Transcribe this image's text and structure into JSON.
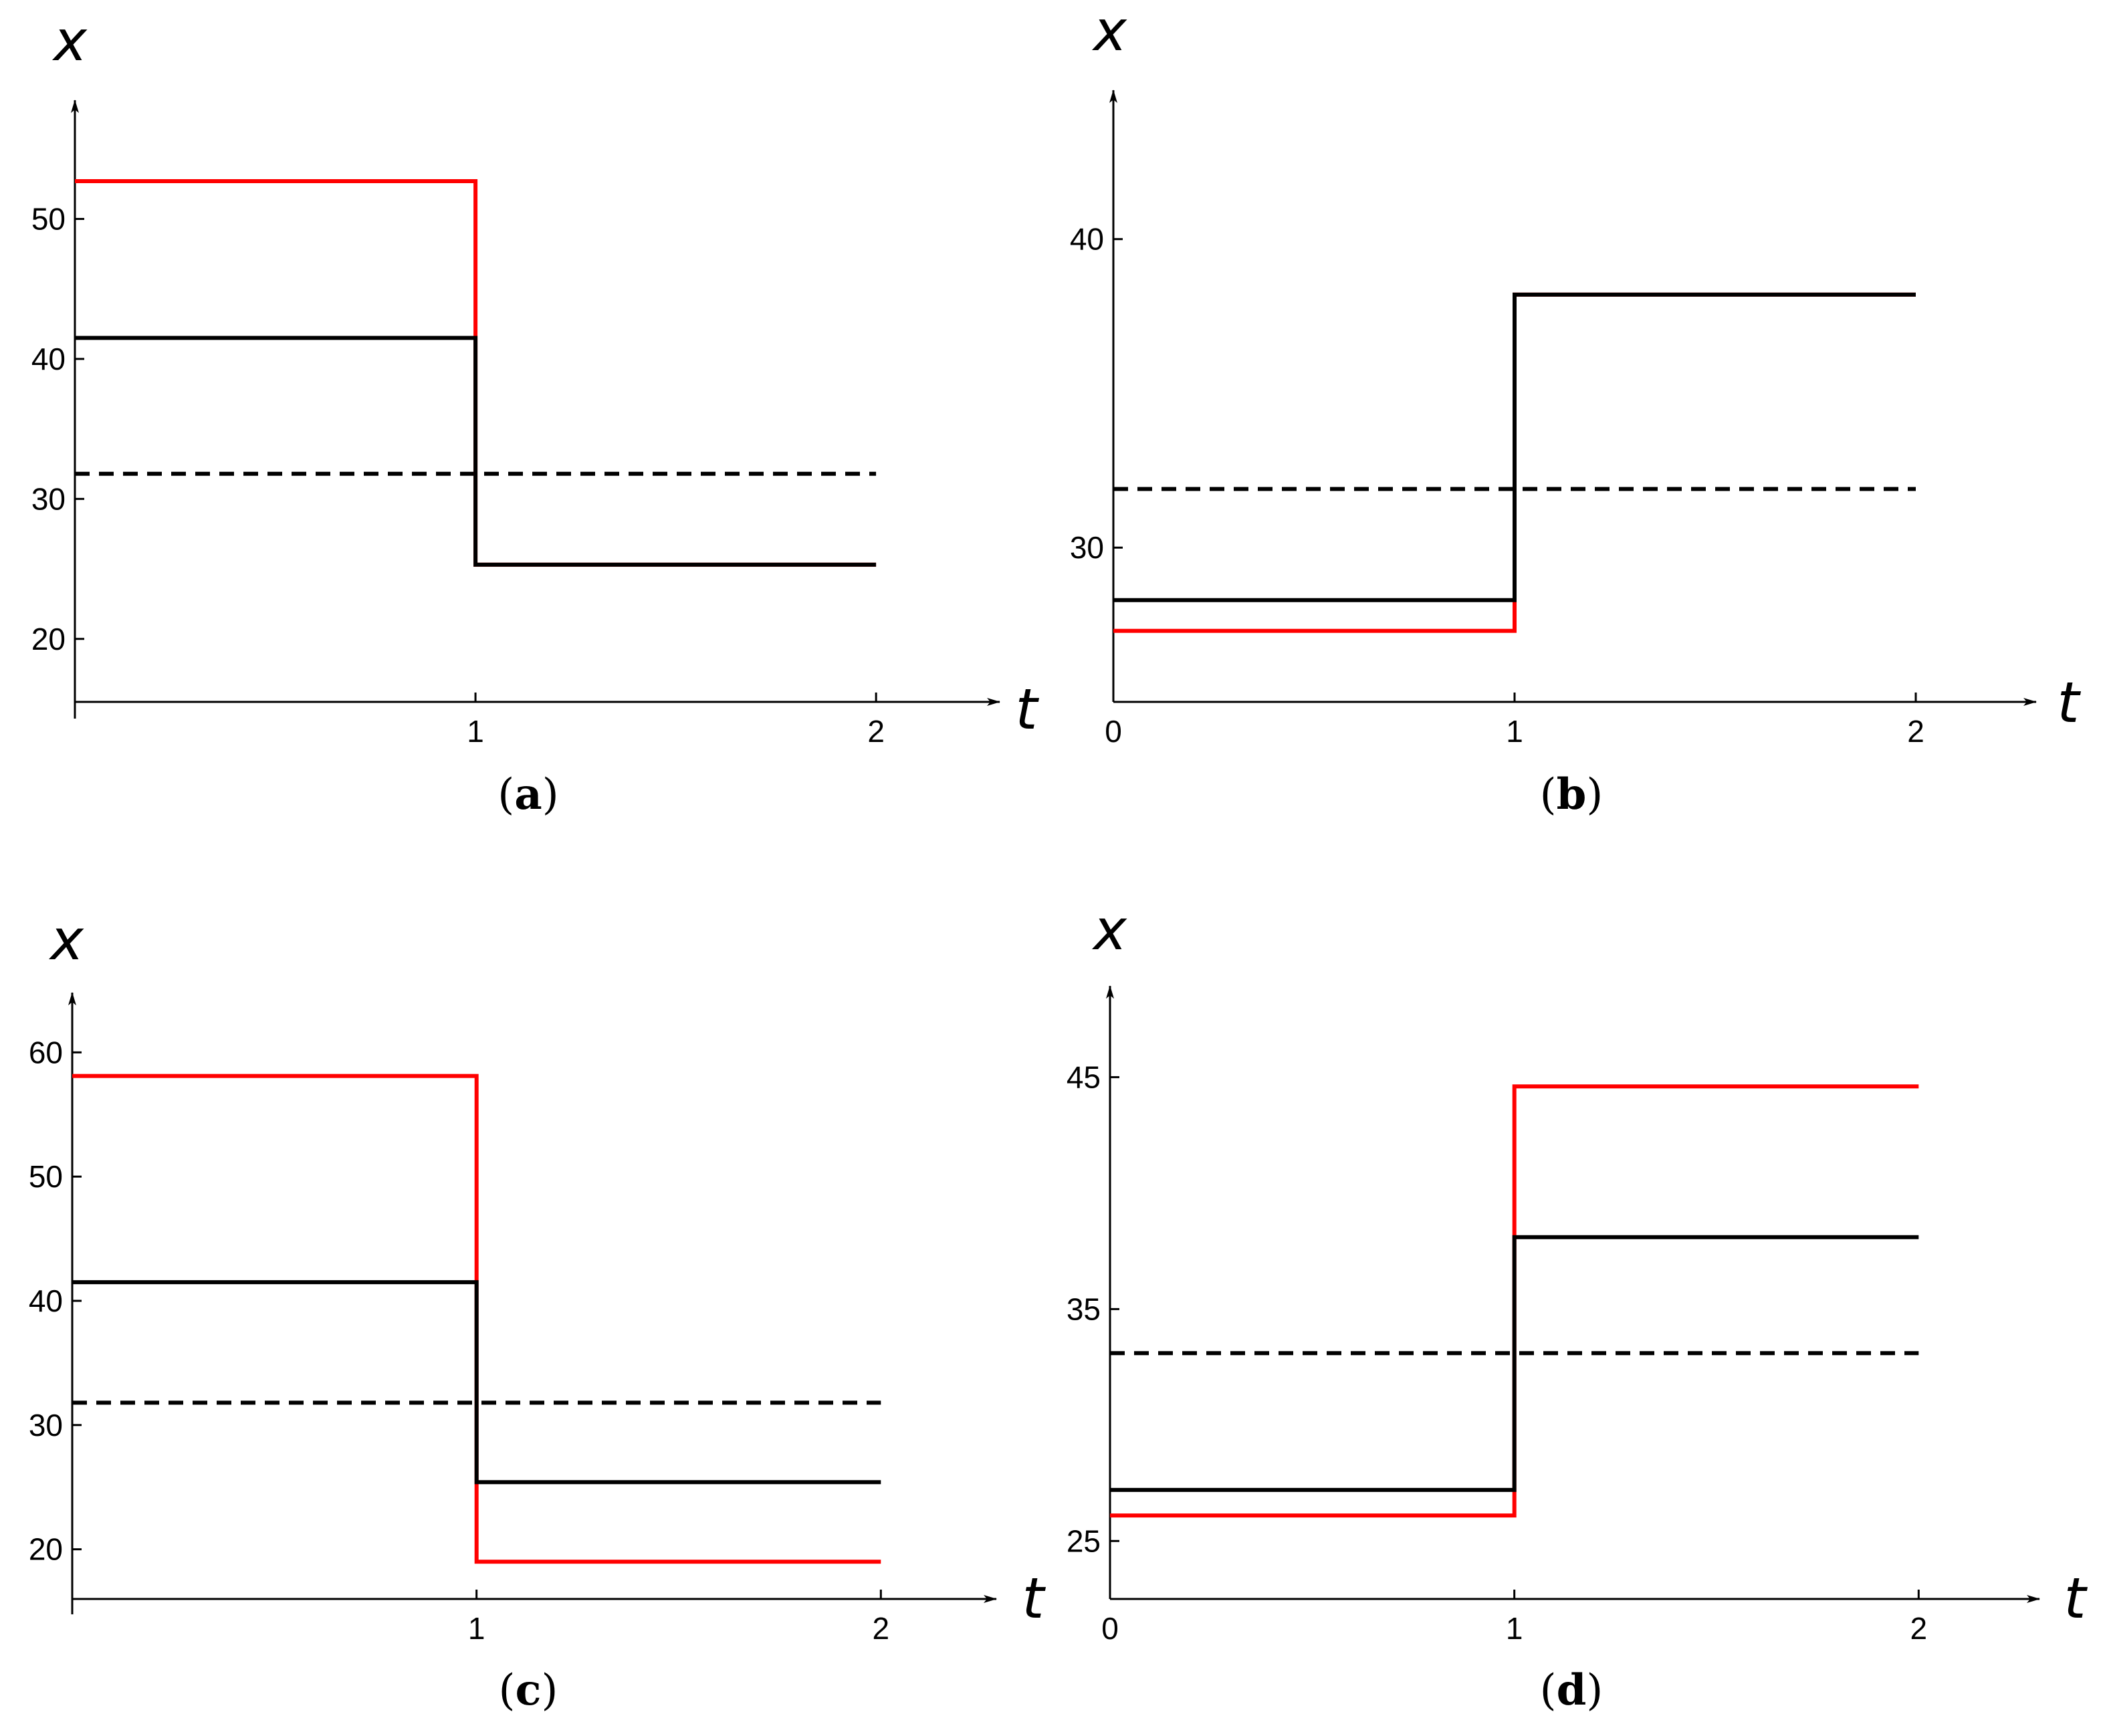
{
  "chart_data": [
    {
      "panel": "(a)",
      "panel_letter": "a",
      "type": "line",
      "xlabel": "t",
      "ylabel": "x",
      "xlim": [
        0,
        2.15
      ],
      "ylim": [
        15.5,
        58
      ],
      "xticks": [
        {
          "value": 1,
          "label": "1"
        },
        {
          "value": 2,
          "label": "2"
        }
      ],
      "yticks": [
        {
          "value": 20,
          "label": "20"
        },
        {
          "value": 30,
          "label": "30"
        },
        {
          "value": 40,
          "label": "40"
        },
        {
          "value": 50,
          "label": "50"
        }
      ],
      "series": [
        {
          "color": "#ff0000",
          "style": "solid",
          "points": [
            [
              0,
              52.7
            ],
            [
              1,
              52.7
            ],
            [
              1,
              25.3
            ],
            [
              2,
              25.3
            ]
          ]
        },
        {
          "color": "#000000",
          "style": "solid",
          "points": [
            [
              0,
              41.5
            ],
            [
              1,
              41.5
            ],
            [
              1,
              25.3
            ],
            [
              2,
              25.3
            ]
          ]
        },
        {
          "color": "#000000",
          "style": "dashed",
          "points": [
            [
              0,
              31.8
            ],
            [
              2,
              31.8
            ]
          ]
        }
      ]
    },
    {
      "panel": "(b)",
      "panel_letter": "b",
      "type": "line",
      "xlabel": "t",
      "ylabel": "x",
      "xlim": [
        0,
        2.15
      ],
      "ylim": [
        25,
        44.5
      ],
      "xticks": [
        {
          "value": 0,
          "label": "0"
        },
        {
          "value": 1,
          "label": "1"
        },
        {
          "value": 2,
          "label": "2"
        }
      ],
      "yticks": [
        {
          "value": 30,
          "label": "30"
        },
        {
          "value": 40,
          "label": "40"
        }
      ],
      "series": [
        {
          "color": "#ff0000",
          "style": "solid",
          "points": [
            [
              0,
              27.3
            ],
            [
              1,
              27.3
            ],
            [
              1,
              38.2
            ],
            [
              2,
              38.2
            ]
          ]
        },
        {
          "color": "#000000",
          "style": "solid",
          "points": [
            [
              0,
              28.3
            ],
            [
              1,
              28.3
            ],
            [
              1,
              38.2
            ],
            [
              2,
              38.2
            ]
          ]
        },
        {
          "color": "#000000",
          "style": "dashed",
          "points": [
            [
              0,
              31.9
            ],
            [
              2,
              31.9
            ]
          ]
        }
      ]
    },
    {
      "panel": "(c)",
      "panel_letter": "c",
      "type": "line",
      "xlabel": "t",
      "ylabel": "x",
      "xlim": [
        0,
        2.15
      ],
      "ylim": [
        16,
        64
      ],
      "xticks": [
        {
          "value": 1,
          "label": "1"
        },
        {
          "value": 2,
          "label": "2"
        }
      ],
      "yticks": [
        {
          "value": 20,
          "label": "20"
        },
        {
          "value": 30,
          "label": "30"
        },
        {
          "value": 40,
          "label": "40"
        },
        {
          "value": 50,
          "label": "50"
        },
        {
          "value": 60,
          "label": "60"
        }
      ],
      "series": [
        {
          "color": "#ff0000",
          "style": "solid",
          "points": [
            [
              0,
              58.1
            ],
            [
              1,
              58.1
            ],
            [
              1,
              19
            ],
            [
              2,
              19
            ]
          ]
        },
        {
          "color": "#000000",
          "style": "solid",
          "points": [
            [
              0,
              41.5
            ],
            [
              1,
              41.5
            ],
            [
              1,
              25.4
            ],
            [
              2,
              25.4
            ]
          ]
        },
        {
          "color": "#000000",
          "style": "dashed",
          "points": [
            [
              0,
              31.8
            ],
            [
              2,
              31.8
            ]
          ]
        }
      ]
    },
    {
      "panel": "(d)",
      "panel_letter": "d",
      "type": "line",
      "xlabel": "t",
      "ylabel": "x",
      "xlim": [
        0,
        2.15
      ],
      "ylim": [
        22.5,
        48.5
      ],
      "xticks": [
        {
          "value": 0,
          "label": "0"
        },
        {
          "value": 1,
          "label": "1"
        },
        {
          "value": 2,
          "label": "2"
        }
      ],
      "yticks": [
        {
          "value": 25,
          "label": "25"
        },
        {
          "value": 35,
          "label": "35"
        },
        {
          "value": 45,
          "label": "45"
        }
      ],
      "series": [
        {
          "color": "#ff0000",
          "style": "solid",
          "points": [
            [
              0,
              26.1
            ],
            [
              1,
              26.1
            ],
            [
              1,
              44.6
            ],
            [
              2,
              44.6
            ]
          ]
        },
        {
          "color": "#000000",
          "style": "solid",
          "points": [
            [
              0,
              27.2
            ],
            [
              1,
              27.2
            ],
            [
              1,
              38.1
            ],
            [
              2,
              38.1
            ]
          ]
        },
        {
          "color": "#000000",
          "style": "dashed",
          "points": [
            [
              0,
              33.1
            ],
            [
              2,
              33.1
            ]
          ]
        }
      ]
    }
  ]
}
